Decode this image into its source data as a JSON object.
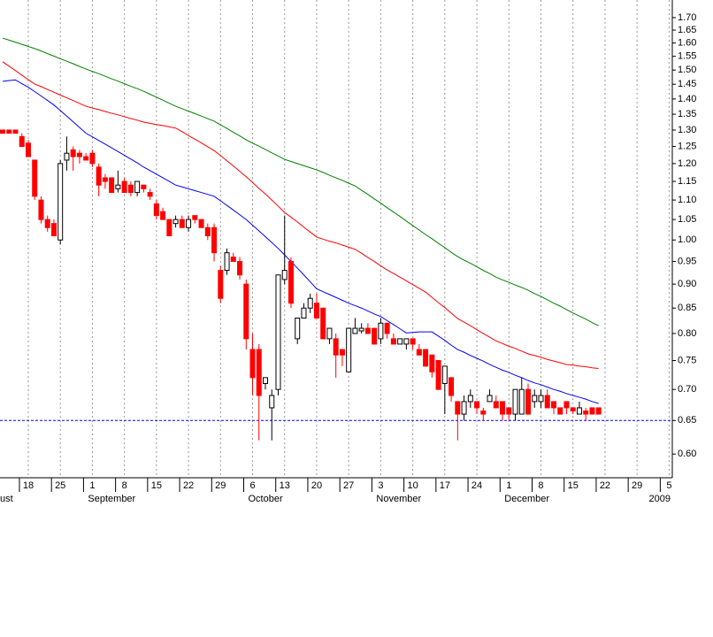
{
  "chart_data": {
    "type": "candlestick",
    "categories": [
      null,
      null,
      null,
      null,
      "18",
      null,
      null,
      null,
      null,
      "25",
      null,
      null,
      null,
      null,
      "1",
      null,
      null,
      null,
      null,
      "8",
      null,
      null,
      null,
      null,
      "15",
      null,
      null,
      null,
      null,
      "22",
      null,
      null,
      null,
      null,
      "29",
      null,
      null,
      null,
      null,
      "6",
      null,
      null,
      null,
      null,
      "13",
      null,
      null,
      null,
      null,
      "20",
      null,
      null,
      null,
      null,
      "27",
      null,
      null,
      null,
      null,
      "3",
      null,
      null,
      null,
      null,
      "10",
      null,
      null,
      null,
      null,
      "17",
      null,
      null,
      null,
      null,
      "24",
      null,
      null,
      null,
      null,
      "1",
      null,
      null,
      null,
      null,
      "8",
      null,
      null,
      null,
      null,
      "15",
      null,
      null,
      null,
      null,
      "22",
      null,
      null,
      null,
      null,
      "29",
      null,
      null,
      null,
      null,
      "5"
    ],
    "month_labels": [
      "ust",
      null,
      null,
      null,
      null,
      null,
      null,
      null,
      null,
      null,
      null,
      null,
      null,
      null,
      "September",
      null,
      null,
      null,
      null,
      null,
      null,
      null,
      null,
      null,
      null,
      null,
      null,
      null,
      null,
      null,
      null,
      null,
      null,
      null,
      null,
      null,
      null,
      null,
      null,
      "October",
      null,
      null,
      null,
      null,
      null,
      null,
      null,
      null,
      null,
      null,
      null,
      null,
      null,
      null,
      null,
      null,
      null,
      null,
      null,
      "November",
      null,
      null,
      null,
      null,
      null,
      null,
      null,
      null,
      null,
      null,
      null,
      null,
      null,
      null,
      null,
      null,
      null,
      null,
      null,
      "December",
      null,
      null,
      null,
      null,
      null,
      null,
      null,
      null,
      null,
      null,
      null,
      null,
      null,
      null,
      null,
      null,
      null,
      null,
      null,
      null,
      null,
      null,
      null,
      null,
      "2009"
    ],
    "open": [
      1.3,
      1.3,
      1.3,
      1.28,
      1.26,
      1.21,
      1.1,
      1.05,
      1.04,
      1.0,
      1.21,
      1.24,
      1.23,
      1.22,
      1.23,
      1.19,
      1.16,
      1.16,
      1.13,
      1.15,
      1.14,
      1.12,
      1.14,
      1.12,
      1.09,
      1.07,
      1.05,
      1.04,
      1.05,
      1.03,
      1.06,
      1.05,
      1.03,
      1.03,
      0.93,
      0.93,
      0.96,
      0.95,
      0.9,
      0.77,
      0.77,
      0.71,
      0.67,
      0.7,
      0.91,
      0.95,
      0.79,
      0.83,
      0.85,
      0.86,
      0.85,
      0.79,
      0.79,
      0.77,
      0.73,
      0.8,
      0.805,
      0.81,
      0.81,
      0.79,
      0.82,
      0.79,
      0.78,
      0.78,
      0.79,
      0.77,
      0.77,
      0.76,
      0.75,
      0.71,
      0.72,
      0.68,
      0.66,
      0.68,
      0.68,
      0.665,
      0.68,
      0.68,
      0.68,
      0.67,
      0.66,
      0.66,
      0.7,
      0.68,
      0.68,
      0.69,
      0.68,
      0.67,
      0.68,
      0.67,
      0.66,
      0.665,
      0.67,
      0.67,
      null,
      null,
      null,
      null,
      null,
      null,
      null,
      null,
      null,
      null,
      null
    ],
    "high": [
      1.3,
      1.3,
      1.3,
      1.29,
      1.27,
      1.21,
      1.11,
      1.06,
      1.05,
      1.21,
      1.28,
      1.25,
      1.24,
      1.23,
      1.24,
      1.2,
      1.17,
      1.16,
      1.18,
      1.16,
      1.15,
      1.15,
      1.14,
      1.13,
      1.1,
      1.08,
      1.05,
      1.06,
      1.06,
      1.06,
      1.06,
      1.05,
      1.04,
      1.04,
      0.94,
      0.98,
      0.97,
      0.96,
      0.91,
      0.8,
      0.78,
      0.72,
      0.7,
      0.92,
      1.06,
      0.96,
      0.83,
      0.86,
      0.88,
      0.88,
      0.85,
      0.81,
      0.8,
      0.77,
      0.81,
      0.83,
      0.82,
      0.82,
      0.81,
      0.83,
      0.82,
      0.8,
      0.79,
      0.79,
      0.79,
      0.78,
      0.77,
      0.76,
      0.75,
      0.74,
      0.72,
      0.68,
      0.69,
      0.7,
      0.68,
      0.67,
      0.7,
      0.69,
      0.68,
      0.67,
      0.7,
      0.72,
      0.71,
      0.7,
      0.7,
      0.7,
      0.68,
      0.67,
      0.68,
      0.67,
      0.68,
      0.67,
      0.67,
      0.67,
      null,
      null,
      null,
      null,
      null,
      null,
      null,
      null,
      null,
      null,
      null
    ],
    "low": [
      1.29,
      1.29,
      1.29,
      1.25,
      1.22,
      1.1,
      1.04,
      1.02,
      1.01,
      0.99,
      1.18,
      1.18,
      1.2,
      1.21,
      1.19,
      1.11,
      1.13,
      1.12,
      1.12,
      1.12,
      1.11,
      1.11,
      1.12,
      1.1,
      1.05,
      1.05,
      1.01,
      1.03,
      1.03,
      1.02,
      1.04,
      1.03,
      1.0,
      0.95,
      0.86,
      0.92,
      0.95,
      0.91,
      0.77,
      0.69,
      0.62,
      0.7,
      0.62,
      0.69,
      0.9,
      0.85,
      0.78,
      0.83,
      0.84,
      0.83,
      0.79,
      0.78,
      0.72,
      0.74,
      0.73,
      0.8,
      0.8,
      0.8,
      0.78,
      0.78,
      0.79,
      0.78,
      0.78,
      0.77,
      0.77,
      0.76,
      0.74,
      0.72,
      0.7,
      0.66,
      0.68,
      0.62,
      0.65,
      0.67,
      0.66,
      0.65,
      0.68,
      0.67,
      0.65,
      0.65,
      0.65,
      0.66,
      0.66,
      0.67,
      0.67,
      0.67,
      0.66,
      0.66,
      0.66,
      0.66,
      0.66,
      0.65,
      0.66,
      0.66,
      null,
      null,
      null,
      null,
      null,
      null,
      null,
      null,
      null,
      null,
      null
    ],
    "close": [
      1.29,
      1.29,
      1.29,
      1.25,
      1.22,
      1.11,
      1.05,
      1.03,
      1.01,
      1.2,
      1.23,
      1.22,
      1.22,
      1.21,
      1.2,
      1.14,
      1.15,
      1.12,
      1.14,
      1.12,
      1.12,
      1.15,
      1.13,
      1.11,
      1.06,
      1.05,
      1.01,
      1.05,
      1.03,
      1.05,
      1.05,
      1.03,
      1.01,
      0.97,
      0.87,
      0.97,
      0.95,
      0.92,
      0.79,
      0.72,
      0.69,
      0.72,
      0.69,
      0.92,
      0.93,
      0.86,
      0.83,
      0.85,
      0.87,
      0.83,
      0.79,
      0.81,
      0.76,
      0.76,
      0.81,
      0.81,
      0.81,
      0.8,
      0.78,
      0.82,
      0.8,
      0.78,
      0.79,
      0.79,
      0.78,
      0.76,
      0.74,
      0.73,
      0.7,
      0.74,
      0.69,
      0.66,
      0.68,
      0.69,
      0.67,
      0.66,
      0.69,
      0.67,
      0.66,
      0.66,
      0.7,
      0.7,
      0.66,
      0.69,
      0.69,
      0.67,
      0.67,
      0.66,
      0.67,
      0.665,
      0.67,
      0.66,
      0.66,
      0.66,
      null,
      null,
      null,
      null,
      null,
      null,
      null,
      null,
      null,
      null,
      null
    ],
    "up_color": "#ffffff",
    "down_color": "#ff0000",
    "series": [
      {
        "color": "#0000ff",
        "values": [
          1.46,
          1.463,
          1.465,
          1.452,
          1.44,
          1.425,
          1.41,
          1.395,
          1.38,
          1.362,
          1.344,
          1.326,
          1.308,
          1.29,
          1.279,
          1.268,
          1.257,
          1.246,
          1.235,
          1.224,
          1.213,
          1.202,
          1.19,
          1.18,
          1.17,
          1.16,
          1.15,
          1.14,
          1.135,
          1.13,
          1.125,
          1.12,
          1.115,
          1.11,
          1.098,
          1.086,
          1.074,
          1.062,
          1.05,
          1.036,
          1.022,
          1.008,
          0.994,
          0.98,
          0.965,
          0.95,
          0.935,
          0.92,
          0.905,
          0.89,
          0.884,
          0.878,
          0.872,
          0.866,
          0.86,
          0.855,
          0.85,
          0.844,
          0.838,
          0.833,
          0.825,
          0.817,
          0.809,
          0.801,
          0.802,
          0.803,
          0.803,
          0.803,
          0.795,
          0.787,
          0.778,
          0.77,
          0.765,
          0.759,
          0.754,
          0.749,
          0.743,
          0.738,
          0.733,
          0.729,
          0.724,
          0.72,
          0.715,
          0.711,
          0.708,
          0.704,
          0.7,
          0.697,
          0.693,
          0.69,
          0.687,
          0.684,
          0.68,
          0.677,
          null,
          null,
          null,
          null,
          null,
          null,
          null,
          null,
          null,
          null,
          null
        ]
      },
      {
        "color": "#ff0000",
        "values": [
          1.53,
          1.514,
          1.498,
          1.482,
          1.466,
          1.451,
          1.442,
          1.432,
          1.423,
          1.413,
          1.404,
          1.395,
          1.385,
          1.376,
          1.37,
          1.365,
          1.359,
          1.353,
          1.348,
          1.342,
          1.336,
          1.331,
          1.325,
          1.321,
          1.317,
          1.314,
          1.31,
          1.306,
          1.295,
          1.283,
          1.272,
          1.261,
          1.249,
          1.238,
          1.223,
          1.208,
          1.193,
          1.178,
          1.163,
          1.147,
          1.131,
          1.116,
          1.1,
          1.084,
          1.068,
          1.056,
          1.044,
          1.031,
          1.019,
          1.007,
          1.002,
          0.997,
          0.993,
          0.988,
          0.983,
          0.978,
          0.969,
          0.959,
          0.95,
          0.94,
          0.931,
          0.923,
          0.915,
          0.907,
          0.899,
          0.891,
          0.883,
          0.872,
          0.861,
          0.851,
          0.84,
          0.829,
          0.822,
          0.815,
          0.807,
          0.8,
          0.793,
          0.786,
          0.781,
          0.776,
          0.772,
          0.767,
          0.762,
          0.759,
          0.756,
          0.752,
          0.749,
          0.746,
          0.743,
          0.742,
          0.74,
          0.739,
          0.737,
          0.736,
          null,
          null,
          null,
          null,
          null,
          null,
          null,
          null,
          null,
          null,
          null
        ]
      },
      {
        "color": "#008000",
        "values": [
          1.619,
          1.611,
          1.603,
          1.595,
          1.587,
          1.579,
          1.57,
          1.56,
          1.551,
          1.541,
          1.532,
          1.523,
          1.513,
          1.504,
          1.495,
          1.487,
          1.478,
          1.469,
          1.461,
          1.452,
          1.443,
          1.435,
          1.426,
          1.416,
          1.406,
          1.396,
          1.386,
          1.376,
          1.368,
          1.36,
          1.352,
          1.344,
          1.336,
          1.328,
          1.316,
          1.305,
          1.293,
          1.282,
          1.27,
          1.26,
          1.251,
          1.241,
          1.231,
          1.222,
          1.212,
          1.206,
          1.2,
          1.194,
          1.188,
          1.182,
          1.175,
          1.167,
          1.16,
          1.153,
          1.145,
          1.138,
          1.126,
          1.115,
          1.103,
          1.092,
          1.08,
          1.069,
          1.058,
          1.046,
          1.035,
          1.024,
          1.013,
          1.003,
          0.992,
          0.982,
          0.971,
          0.961,
          0.953,
          0.946,
          0.938,
          0.93,
          0.923,
          0.915,
          0.909,
          0.904,
          0.898,
          0.893,
          0.887,
          0.88,
          0.874,
          0.867,
          0.86,
          0.854,
          0.847,
          0.84,
          0.834,
          0.828,
          0.821,
          0.815,
          null,
          null,
          null,
          null,
          null,
          null,
          null,
          null,
          null,
          null,
          null
        ]
      }
    ],
    "ylim": [
      0.567,
      1.773
    ],
    "log_scale": true,
    "grid": true,
    "yticks": [
      {
        "value": 0.6,
        "label": "0.60"
      },
      {
        "value": 0.65,
        "label": "0.65"
      },
      {
        "value": 0.7,
        "label": "0.70"
      },
      {
        "value": 0.75,
        "label": "0.75"
      },
      {
        "value": 0.8,
        "label": "0.80"
      },
      {
        "value": 0.85,
        "label": "0.85"
      },
      {
        "value": 0.9,
        "label": "0.90"
      },
      {
        "value": 0.95,
        "label": "0.95"
      },
      {
        "value": 1,
        "label": "1.00"
      },
      {
        "value": 1.05,
        "label": "1.05"
      },
      {
        "value": 1.1,
        "label": "1.10"
      },
      {
        "value": 1.15,
        "label": "1.15"
      },
      {
        "value": 1.2,
        "label": "1.20"
      },
      {
        "value": 1.25,
        "label": "1.25"
      },
      {
        "value": 1.3,
        "label": "1.30"
      },
      {
        "value": 1.35,
        "label": "1.35"
      },
      {
        "value": 1.4,
        "label": "1.40"
      },
      {
        "value": 1.45,
        "label": "1.45"
      },
      {
        "value": 1.5,
        "label": "1.50"
      },
      {
        "value": 1.55,
        "label": "1.55"
      },
      {
        "value": 1.6,
        "label": "1.60"
      },
      {
        "value": 1.65,
        "label": "1.65"
      },
      {
        "value": 1.7,
        "label": "1.70"
      }
    ],
    "reference_line": {
      "value": 0.65,
      "color": "#0000ff"
    }
  }
}
